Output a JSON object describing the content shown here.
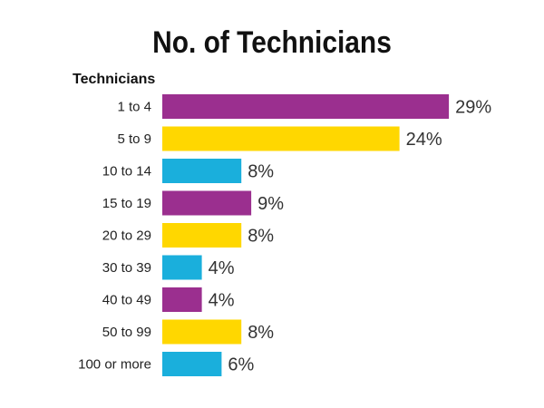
{
  "chart_data": {
    "type": "bar",
    "orientation": "horizontal",
    "title": "No. of Technicians",
    "ylabel": "Technicians",
    "categories": [
      "1 to 4",
      "5 to 9",
      "10 to 14",
      "15 to 19",
      "20 to 29",
      "30 to 39",
      "40 to 49",
      "50 to 99",
      "100 or more"
    ],
    "values": [
      29,
      24,
      8,
      9,
      8,
      4,
      4,
      8,
      6
    ],
    "value_labels": [
      "29%",
      "24%",
      "8%",
      "9%",
      "8%",
      "4%",
      "4%",
      "8%",
      "6%"
    ],
    "bar_colors": [
      "#9b2f8f",
      "#ffd700",
      "#1aafdc",
      "#9b2f8f",
      "#ffd700",
      "#1aafdc",
      "#9b2f8f",
      "#ffd700",
      "#1aafdc"
    ],
    "grid": false,
    "legend": "none"
  }
}
